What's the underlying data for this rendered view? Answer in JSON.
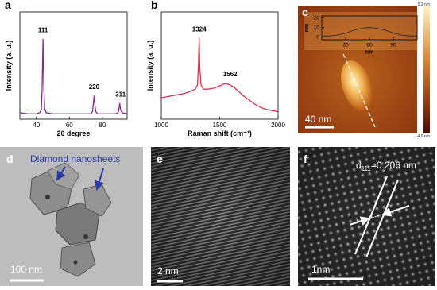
{
  "chart_data": [
    {
      "type": "line",
      "label": "a",
      "xlabel": "2θ degree",
      "ylabel": "Intensity (a. u.)",
      "color": "#8e2a8c",
      "xlim": [
        30,
        95
      ],
      "ylim": [
        0,
        100
      ],
      "xticks": [
        40,
        60,
        80
      ],
      "x": [
        30,
        35,
        40,
        42,
        43,
        43.5,
        44,
        44.5,
        45,
        46,
        50,
        55,
        60,
        65,
        70,
        73,
        74,
        74.5,
        75,
        75.5,
        76,
        77,
        80,
        85,
        88,
        89.5,
        90,
        90.5,
        91,
        92,
        95
      ],
      "values": [
        6,
        5,
        5,
        6,
        9,
        30,
        75,
        32,
        10,
        6,
        5,
        5,
        5,
        5,
        5,
        5,
        7,
        14,
        22,
        13,
        7,
        5,
        5,
        5,
        5,
        6,
        9,
        15,
        9,
        6,
        5
      ],
      "annotations": [
        {
          "text": "111",
          "x": 44,
          "y": 81
        },
        {
          "text": "220",
          "x": 75,
          "y": 28
        },
        {
          "text": "311",
          "x": 91,
          "y": 21
        }
      ]
    },
    {
      "type": "line",
      "label": "b",
      "xlabel": "Raman shift (cm⁻¹)",
      "ylabel": "Intensity (a. u.)",
      "color": "#e8304f",
      "xlim": [
        1000,
        2000
      ],
      "ylim": [
        0,
        100
      ],
      "xticks": [
        1000,
        1500,
        2000
      ],
      "x": [
        1000,
        1050,
        1100,
        1150,
        1200,
        1250,
        1290,
        1310,
        1318,
        1324,
        1330,
        1340,
        1360,
        1400,
        1450,
        1500,
        1540,
        1562,
        1590,
        1620,
        1660,
        1700,
        1750,
        1800,
        1850,
        1900,
        1950,
        2000
      ],
      "values": [
        20,
        21,
        22,
        23,
        24,
        26,
        28,
        32,
        50,
        76,
        48,
        32,
        28,
        28,
        29,
        31,
        33,
        33,
        32,
        30,
        26,
        22,
        18,
        14,
        11,
        9,
        8,
        7
      ],
      "annotations": [
        {
          "text": "1324",
          "x": 1324,
          "y": 82
        },
        {
          "text": "1562",
          "x": 1590,
          "y": 40
        }
      ]
    },
    {
      "type": "line",
      "label": "c",
      "xlabel": "nm",
      "ylabel": "nm",
      "color": "#222222",
      "xlim": [
        0,
        120
      ],
      "ylim": [
        -3,
        22
      ],
      "xticks": [
        30,
        60,
        90
      ],
      "yticks": [
        0,
        10,
        20
      ],
      "x": [
        0,
        10,
        20,
        30,
        40,
        50,
        60,
        70,
        80,
        90,
        100,
        110,
        120
      ],
      "values": [
        1,
        1,
        2,
        4,
        7,
        9,
        10,
        9,
        7,
        4,
        2,
        1,
        1
      ]
    }
  ],
  "images": [
    {
      "label": "c",
      "scale_bar": "40 nm",
      "colorbar_max": "5.2 nm",
      "colorbar_min": "-4.6 nm"
    },
    {
      "label": "d",
      "annotation": "Diamond nanosheets",
      "scale_bar": "100 nm"
    },
    {
      "label": "e",
      "scale_bar": "2 nm"
    },
    {
      "label": "f",
      "spacing": {
        "symbol": "d",
        "subscript": "111",
        "text": "=0.206 nm"
      },
      "scale_bar": "1nm"
    }
  ]
}
